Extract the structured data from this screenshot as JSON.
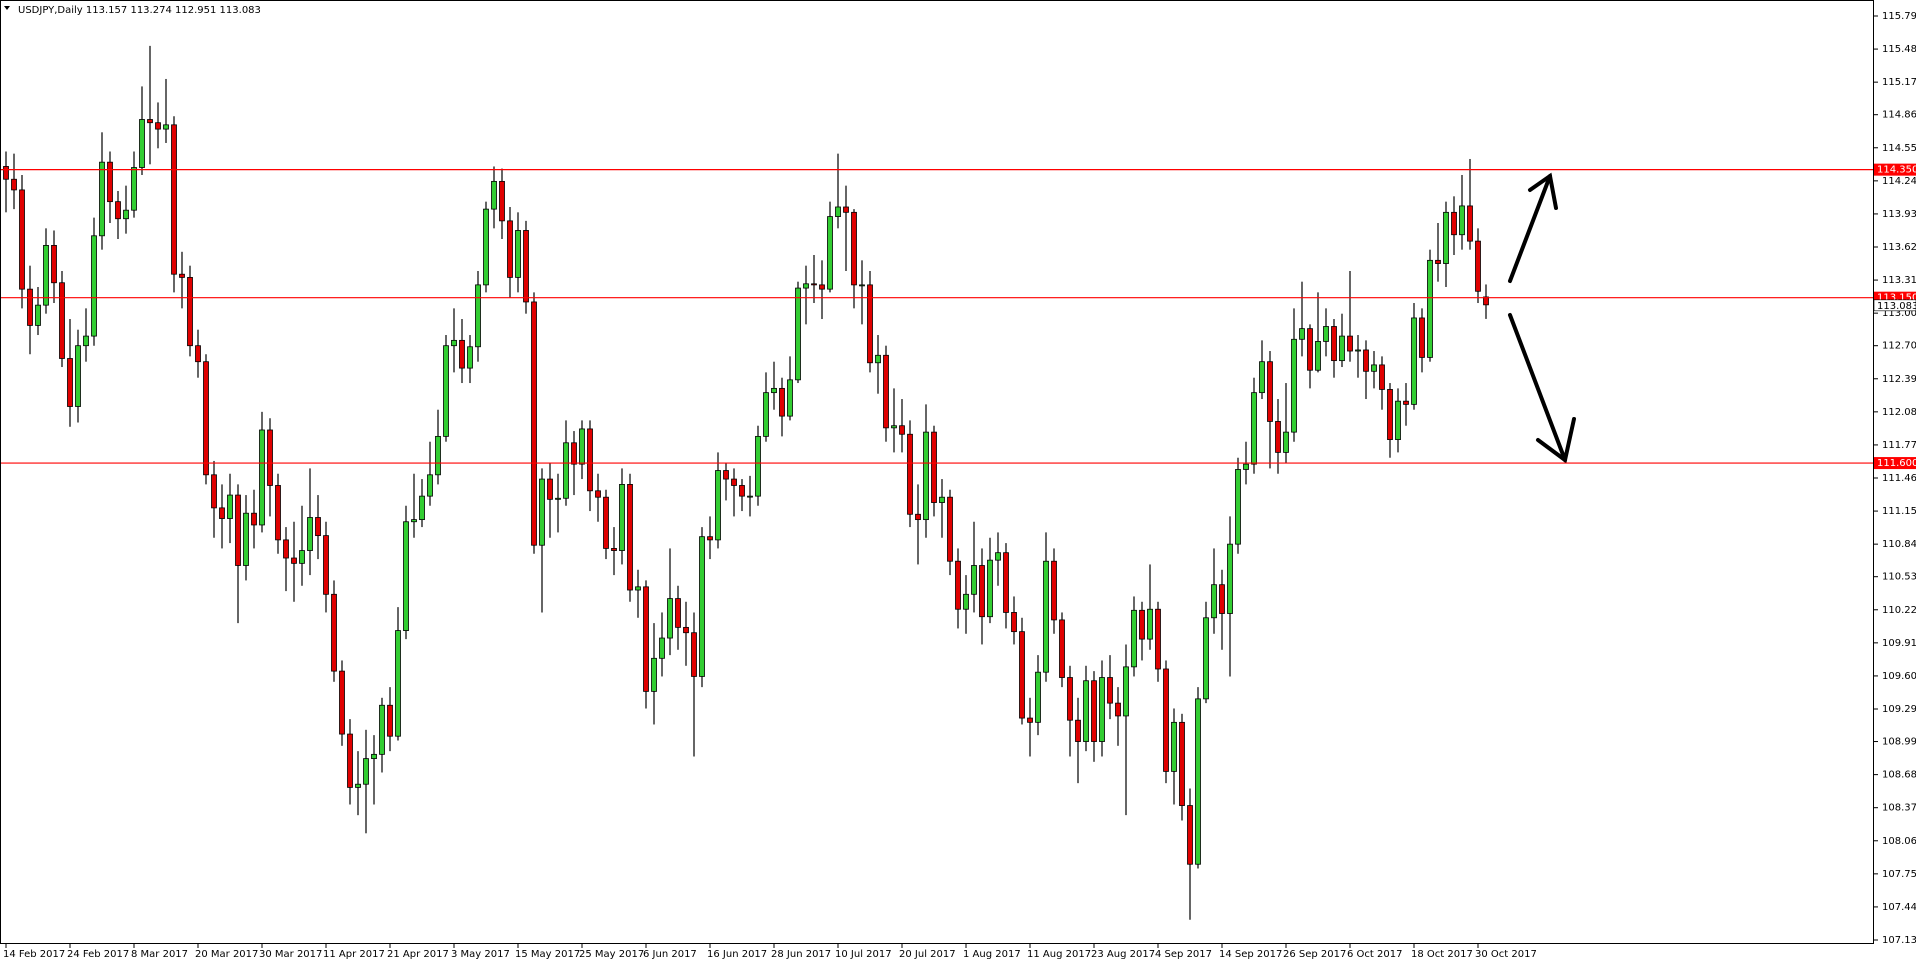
{
  "chart_data": {
    "type": "candlestick",
    "symbol": "USDJPY,Daily",
    "categories": [
      "14 Feb 2017",
      null,
      null,
      null,
      null,
      null,
      null,
      null,
      "24 Feb 2017",
      null,
      null,
      null,
      null,
      null,
      null,
      null,
      "8 Mar 2017",
      null,
      null,
      null,
      null,
      null,
      null,
      null,
      "20 Mar 2017",
      null,
      null,
      null,
      null,
      null,
      null,
      null,
      "30 Mar 2017",
      null,
      null,
      null,
      null,
      null,
      null,
      null,
      "11 Apr 2017",
      null,
      null,
      null,
      null,
      null,
      null,
      null,
      "21 Apr 2017",
      null,
      null,
      null,
      null,
      null,
      null,
      null,
      "3 May 2017",
      null,
      null,
      null,
      null,
      null,
      null,
      null,
      "15 May 2017",
      null,
      null,
      null,
      null,
      null,
      null,
      null,
      "25 May 2017",
      null,
      null,
      null,
      null,
      null,
      null,
      null,
      "6 Jun 2017",
      null,
      null,
      null,
      null,
      null,
      null,
      null,
      "16 Jun 2017",
      null,
      null,
      null,
      null,
      null,
      null,
      null,
      "28 Jun 2017",
      null,
      null,
      null,
      null,
      null,
      null,
      null,
      "10 Jul 2017",
      null,
      null,
      null,
      null,
      null,
      null,
      null,
      "20 Jul 2017",
      null,
      null,
      null,
      null,
      null,
      null,
      null,
      "1 Aug 2017",
      null,
      null,
      null,
      null,
      null,
      null,
      null,
      "11 Aug 2017",
      null,
      null,
      null,
      null,
      null,
      null,
      null,
      "23 Aug 2017",
      null,
      null,
      null,
      null,
      null,
      null,
      null,
      "4 Sep 2017",
      null,
      null,
      null,
      null,
      null,
      null,
      null,
      "14 Sep 2017",
      null,
      null,
      null,
      null,
      null,
      null,
      null,
      "26 Sep 2017",
      null,
      null,
      null,
      null,
      null,
      null,
      null,
      "6 Oct 2017",
      null,
      null,
      null,
      null,
      null,
      null,
      null,
      "18 Oct 2017",
      null,
      null,
      null,
      null,
      null,
      null,
      null,
      "30 Oct 2017",
      null
    ],
    "open": [
      114.38,
      114.26,
      114.16,
      113.23,
      112.89,
      113.08,
      113.64,
      113.29,
      112.58,
      112.13,
      112.7,
      112.79,
      113.73,
      114.42,
      114.05,
      113.89,
      113.97,
      114.37,
      114.82,
      114.79,
      114.73,
      114.77,
      113.37,
      113.34,
      112.7,
      112.55,
      111.49,
      111.18,
      111.08,
      111.3,
      110.64,
      111.13,
      111.02,
      111.91,
      111.39,
      110.88,
      110.71,
      110.66,
      110.78,
      111.09,
      110.92,
      110.37,
      109.65,
      109.06,
      108.56,
      108.59,
      108.83,
      108.87,
      109.33,
      109.04,
      110.03,
      111.05,
      111.07,
      111.29,
      111.49,
      111.85,
      112.7,
      112.75,
      112.49,
      112.69,
      113.27,
      113.98,
      114.24,
      113.87,
      113.34,
      113.78,
      113.11,
      110.83,
      111.45,
      111.26,
      111.27,
      111.79,
      111.59,
      111.92,
      111.34,
      111.28,
      110.8,
      110.78,
      111.4,
      110.41,
      110.44,
      109.46,
      109.77,
      109.96,
      110.33,
      110.06,
      110.01,
      109.6,
      110.91,
      110.88,
      111.53,
      111.45,
      111.39,
      111.29,
      111.29,
      111.85,
      112.26,
      112.3,
      112.04,
      112.38,
      113.24,
      113.28,
      113.27,
      113.23,
      113.91,
      114.0,
      113.95,
      113.27,
      113.27,
      112.54,
      112.61,
      111.93,
      111.95,
      111.87,
      111.12,
      111.07,
      111.89,
      111.23,
      111.28,
      110.68,
      110.23,
      110.37,
      110.64,
      110.16,
      110.69,
      110.76,
      110.2,
      110.02,
      109.21,
      109.17,
      109.64,
      110.68,
      110.13,
      109.59,
      109.19,
      108.99,
      109.56,
      108.99,
      109.59,
      109.35,
      109.23,
      109.69,
      110.22,
      109.95,
      110.23,
      109.67,
      108.71,
      109.17,
      108.39,
      107.84,
      109.39,
      110.15,
      110.46,
      110.19,
      110.84,
      111.54,
      111.59,
      112.26,
      112.55,
      111.99,
      111.7,
      111.89,
      112.76,
      112.86,
      112.47,
      112.74,
      112.88,
      112.56,
      112.79,
      112.65,
      112.66,
      112.46,
      112.52,
      112.29,
      111.82,
      112.18,
      112.15,
      112.96,
      112.59,
      113.5,
      113.47,
      113.95,
      113.74,
      114.01,
      113.68,
      113.157
    ],
    "high": [
      114.52,
      114.5,
      114.3,
      113.45,
      113.25,
      113.8,
      113.78,
      113.4,
      112.95,
      112.85,
      113.05,
      113.9,
      114.7,
      114.52,
      114.15,
      114.2,
      114.52,
      115.13,
      115.51,
      114.98,
      115.2,
      114.85,
      113.58,
      113.45,
      112.85,
      112.62,
      111.62,
      111.4,
      111.5,
      111.4,
      111.3,
      111.35,
      112.08,
      112.02,
      111.5,
      111.0,
      111.05,
      111.2,
      111.55,
      111.3,
      111.05,
      110.5,
      109.75,
      109.2,
      108.9,
      109.1,
      109.05,
      109.4,
      109.5,
      110.25,
      111.2,
      111.5,
      111.45,
      111.8,
      112.1,
      112.8,
      113.05,
      112.95,
      112.8,
      113.4,
      114.05,
      114.38,
      114.36,
      114.0,
      113.95,
      113.87,
      113.2,
      111.55,
      111.6,
      111.5,
      112.0,
      111.9,
      112.0,
      112.0,
      111.5,
      111.35,
      111.0,
      111.55,
      111.5,
      110.6,
      110.5,
      110.1,
      110.2,
      110.8,
      110.45,
      110.3,
      110.2,
      111.0,
      111.1,
      111.7,
      111.6,
      111.55,
      111.45,
      111.48,
      111.95,
      112.45,
      112.55,
      112.4,
      112.6,
      113.3,
      113.45,
      113.55,
      113.5,
      114.05,
      114.5,
      114.2,
      113.98,
      113.5,
      113.4,
      112.8,
      112.7,
      112.3,
      112.2,
      112.0,
      111.4,
      112.15,
      111.95,
      111.45,
      111.35,
      110.8,
      110.55,
      111.05,
      110.8,
      110.9,
      110.95,
      110.85,
      110.35,
      110.15,
      109.4,
      109.8,
      110.95,
      110.8,
      110.2,
      109.7,
      109.4,
      109.7,
      109.65,
      109.75,
      109.8,
      109.5,
      109.9,
      110.35,
      110.3,
      110.65,
      110.3,
      109.75,
      109.3,
      109.25,
      108.55,
      109.5,
      110.3,
      110.8,
      110.6,
      111.1,
      111.65,
      111.8,
      112.4,
      112.75,
      112.65,
      112.2,
      112.35,
      113.05,
      113.3,
      112.9,
      113.2,
      113.05,
      112.95,
      113.0,
      113.4,
      112.8,
      112.75,
      112.65,
      112.6,
      112.35,
      112.3,
      112.35,
      113.1,
      113.05,
      113.6,
      113.85,
      114.05,
      114.1,
      114.3,
      114.45,
      113.8,
      113.274
    ],
    "low": [
      113.95,
      113.98,
      113.05,
      112.62,
      112.8,
      113.0,
      113.1,
      112.5,
      111.94,
      111.98,
      112.55,
      112.7,
      113.6,
      113.85,
      113.7,
      113.75,
      113.9,
      114.3,
      114.4,
      114.55,
      114.6,
      113.2,
      113.05,
      112.6,
      112.4,
      111.4,
      110.9,
      110.8,
      110.85,
      110.1,
      110.5,
      110.8,
      110.95,
      111.1,
      110.75,
      110.4,
      110.3,
      110.45,
      110.55,
      110.7,
      110.2,
      109.55,
      108.95,
      108.4,
      108.3,
      108.13,
      108.4,
      108.7,
      108.9,
      109.0,
      109.95,
      110.9,
      111.0,
      111.2,
      111.4,
      111.8,
      112.45,
      112.35,
      112.35,
      112.55,
      113.2,
      113.8,
      113.7,
      113.15,
      113.2,
      113.0,
      110.75,
      110.2,
      110.9,
      110.95,
      111.2,
      111.3,
      111.45,
      111.15,
      111.05,
      110.7,
      110.55,
      110.65,
      110.3,
      110.15,
      109.3,
      109.15,
      109.6,
      109.8,
      109.85,
      109.7,
      108.85,
      109.5,
      110.7,
      110.8,
      111.25,
      111.1,
      111.15,
      111.1,
      111.2,
      111.8,
      112.1,
      111.85,
      112.0,
      112.35,
      112.9,
      113.1,
      112.95,
      113.2,
      113.8,
      113.4,
      113.05,
      112.9,
      112.45,
      112.25,
      111.8,
      111.7,
      111.7,
      111.0,
      110.65,
      110.9,
      111.1,
      110.9,
      110.55,
      110.05,
      110.0,
      110.2,
      109.9,
      110.1,
      110.45,
      110.05,
      109.9,
      109.15,
      108.85,
      109.05,
      109.55,
      110.0,
      109.5,
      108.85,
      108.6,
      108.9,
      108.8,
      108.85,
      109.2,
      108.95,
      108.3,
      109.6,
      109.75,
      109.85,
      109.55,
      108.6,
      108.4,
      108.25,
      107.32,
      107.8,
      109.35,
      110.0,
      109.85,
      109.6,
      110.75,
      111.4,
      111.5,
      112.2,
      111.55,
      111.5,
      111.6,
      111.8,
      112.6,
      112.3,
      112.45,
      112.6,
      112.4,
      112.5,
      112.55,
      112.4,
      112.2,
      112.3,
      112.1,
      111.65,
      111.7,
      111.95,
      112.1,
      112.45,
      112.55,
      113.3,
      113.25,
      113.55,
      113.6,
      113.6,
      113.1,
      112.951
    ],
    "close": [
      114.26,
      114.16,
      113.23,
      112.89,
      113.08,
      113.64,
      113.29,
      112.58,
      112.13,
      112.7,
      112.79,
      113.73,
      114.42,
      114.05,
      113.89,
      113.97,
      114.37,
      114.82,
      114.79,
      114.73,
      114.77,
      113.37,
      113.34,
      112.7,
      112.55,
      111.49,
      111.18,
      111.08,
      111.3,
      110.64,
      111.13,
      111.02,
      111.91,
      111.39,
      110.88,
      110.71,
      110.66,
      110.78,
      111.09,
      110.92,
      110.37,
      109.65,
      109.06,
      108.56,
      108.59,
      108.83,
      108.87,
      109.33,
      109.04,
      110.03,
      111.05,
      111.07,
      111.29,
      111.49,
      111.85,
      112.7,
      112.75,
      112.49,
      112.69,
      113.27,
      113.98,
      114.24,
      113.87,
      113.34,
      113.78,
      113.11,
      110.83,
      111.45,
      111.26,
      111.27,
      111.79,
      111.59,
      111.92,
      111.34,
      111.28,
      110.8,
      110.78,
      111.4,
      110.41,
      110.44,
      109.46,
      109.77,
      109.96,
      110.33,
      110.06,
      110.01,
      109.6,
      110.91,
      110.88,
      111.53,
      111.45,
      111.39,
      111.29,
      111.29,
      111.85,
      112.26,
      112.3,
      112.04,
      112.38,
      113.24,
      113.28,
      113.27,
      113.23,
      113.91,
      114.0,
      113.95,
      113.27,
      113.27,
      112.54,
      112.61,
      111.93,
      111.95,
      111.87,
      111.12,
      111.07,
      111.89,
      111.23,
      111.28,
      110.68,
      110.23,
      110.37,
      110.64,
      110.16,
      110.69,
      110.76,
      110.2,
      110.02,
      109.21,
      109.17,
      109.64,
      110.68,
      110.13,
      109.59,
      109.19,
      108.99,
      109.56,
      108.99,
      109.59,
      109.35,
      109.23,
      109.69,
      110.22,
      109.95,
      110.23,
      109.67,
      108.71,
      109.17,
      108.39,
      107.84,
      109.39,
      110.15,
      110.46,
      110.19,
      110.84,
      111.54,
      111.59,
      112.26,
      112.55,
      111.99,
      111.7,
      111.89,
      112.76,
      112.86,
      112.47,
      112.74,
      112.88,
      112.56,
      112.79,
      112.65,
      112.66,
      112.46,
      112.52,
      112.29,
      111.82,
      112.18,
      112.15,
      112.96,
      112.59,
      113.5,
      113.47,
      113.95,
      113.74,
      114.01,
      113.68,
      113.21,
      113.083
    ],
    "up_color": "#32cd32",
    "down_color": "#e00000",
    "wick_color": "#000000",
    "ylim": [
      107.13,
      115.79
    ],
    "yticks": [
      {
        "value": 107.13,
        "label": "107.130"
      },
      {
        "value": 107.44,
        "label": "107.440"
      },
      {
        "value": 107.75,
        "label": "107.750"
      },
      {
        "value": 108.06,
        "label": "108.060"
      },
      {
        "value": 108.37,
        "label": "108.370"
      },
      {
        "value": 108.68,
        "label": "108.680"
      },
      {
        "value": 108.99,
        "label": "108.990"
      },
      109.295,
      109.605,
      109.915,
      110.225,
      110.535,
      {
        "value": 110.84,
        "label": "110.840"
      },
      {
        "value": 111.15,
        "label": "111.150"
      },
      {
        "value": 111.46,
        "label": "111.460"
      },
      {
        "value": 111.77,
        "label": "111.770"
      },
      {
        "value": 112.08,
        "label": "112.080"
      },
      {
        "value": 112.39,
        "label": "112.390"
      },
      {
        "value": 112.7,
        "label": "112.700"
      },
      113.005,
      113.315,
      113.625,
      113.935,
      114.245,
      114.555,
      114.865,
      {
        "value": 115.17,
        "label": "115.170"
      },
      {
        "value": 115.48,
        "label": "115.480"
      },
      {
        "value": 115.79,
        "label": "115.790"
      }
    ],
    "levels": [
      {
        "value": 114.35,
        "label": "114.350"
      },
      {
        "value": 113.15,
        "label": "113.150"
      },
      {
        "value": 111.6,
        "label": "111.600"
      }
    ],
    "level_color": "#ff0000"
  }
}
